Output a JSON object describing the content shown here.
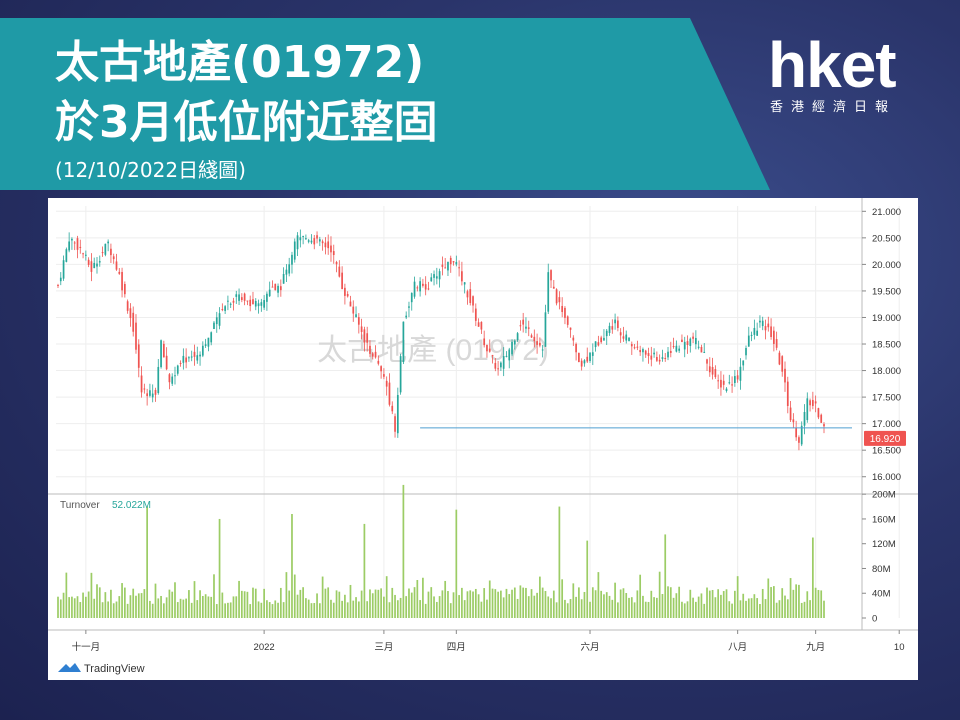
{
  "header": {
    "line1": "太古地產(01972)",
    "line2": "於3月低位附近整固",
    "line3": "(12/10/2022日綫圖)"
  },
  "logo": {
    "word": "hket",
    "subtitle": "香港經濟日報"
  },
  "colors": {
    "banner": "#1f9aa6",
    "up": "#26a69a",
    "down": "#ef5350",
    "volume": "#9ccc65",
    "support_line": "#4f9fd1",
    "price_badge": "#ef5350"
  },
  "chart_data": {
    "type": "candlestick",
    "watermark": "太古地產 (01972)",
    "price_axis": {
      "ticks": [
        "21.000",
        "20.500",
        "20.000",
        "19.500",
        "19.000",
        "18.500",
        "18.000",
        "17.500",
        "17.000",
        "16.500",
        "16.000"
      ],
      "range": [
        15.75,
        21.1
      ]
    },
    "volume_axis": {
      "ticks": [
        "200M",
        "160M",
        "120M",
        "80M",
        "40M",
        "0"
      ],
      "range": [
        0,
        210
      ]
    },
    "x_labels": [
      "十一月",
      "2022",
      "三月",
      "四月",
      "六月",
      "八月",
      "九月",
      "10"
    ],
    "x_label_days": [
      10,
      74,
      117,
      143,
      191,
      244,
      272,
      302
    ],
    "last_price": "16.920",
    "support_level": 16.92,
    "support_start_day": 130,
    "volume_legend_label": "Turnover",
    "volume_legend_value": "52.022M",
    "brand": "TradingView",
    "price_path": [
      [
        0,
        19.6
      ],
      [
        4,
        20.5
      ],
      [
        8,
        20.3
      ],
      [
        12,
        19.9
      ],
      [
        18,
        20.4
      ],
      [
        22,
        19.8
      ],
      [
        27,
        18.8
      ],
      [
        30,
        17.6
      ],
      [
        35,
        17.6
      ],
      [
        37,
        18.5
      ],
      [
        40,
        17.8
      ],
      [
        45,
        18.2
      ],
      [
        50,
        18.3
      ],
      [
        55,
        18.7
      ],
      [
        60,
        19.3
      ],
      [
        66,
        19.4
      ],
      [
        72,
        19.2
      ],
      [
        76,
        19.5
      ],
      [
        80,
        19.6
      ],
      [
        86,
        20.5
      ],
      [
        90,
        20.5
      ],
      [
        94,
        20.4
      ],
      [
        98,
        20.3
      ],
      [
        102,
        19.6
      ],
      [
        106,
        19.1
      ],
      [
        110,
        18.6
      ],
      [
        114,
        18.2
      ],
      [
        118,
        17.7
      ],
      [
        121,
        16.92
      ],
      [
        124,
        18.9
      ],
      [
        128,
        19.6
      ],
      [
        133,
        19.6
      ],
      [
        137,
        19.9
      ],
      [
        142,
        20.1
      ],
      [
        146,
        19.6
      ],
      [
        150,
        19.0
      ],
      [
        154,
        18.4
      ],
      [
        158,
        18.0
      ],
      [
        162,
        18.4
      ],
      [
        166,
        18.9
      ],
      [
        170,
        18.7
      ],
      [
        174,
        18.4
      ],
      [
        176,
        19.8
      ],
      [
        180,
        19.2
      ],
      [
        184,
        18.7
      ],
      [
        188,
        18.1
      ],
      [
        192,
        18.4
      ],
      [
        196,
        18.7
      ],
      [
        200,
        18.9
      ],
      [
        204,
        18.6
      ],
      [
        208,
        18.4
      ],
      [
        212,
        18.3
      ],
      [
        216,
        18.2
      ],
      [
        220,
        18.4
      ],
      [
        224,
        18.5
      ],
      [
        228,
        18.6
      ],
      [
        232,
        18.3
      ],
      [
        236,
        17.8
      ],
      [
        240,
        17.7
      ],
      [
        244,
        17.9
      ],
      [
        248,
        18.6
      ],
      [
        252,
        18.9
      ],
      [
        256,
        18.7
      ],
      [
        260,
        18.0
      ],
      [
        263,
        17.1
      ],
      [
        266,
        16.7
      ],
      [
        269,
        17.4
      ],
      [
        272,
        17.3
      ],
      [
        275,
        16.92
      ]
    ],
    "volume_spikes": [
      [
        32,
        180
      ],
      [
        58,
        160
      ],
      [
        84,
        168
      ],
      [
        110,
        152
      ],
      [
        124,
        215
      ],
      [
        143,
        175
      ],
      [
        180,
        180
      ],
      [
        190,
        125
      ],
      [
        218,
        135
      ],
      [
        271,
        130
      ]
    ]
  }
}
